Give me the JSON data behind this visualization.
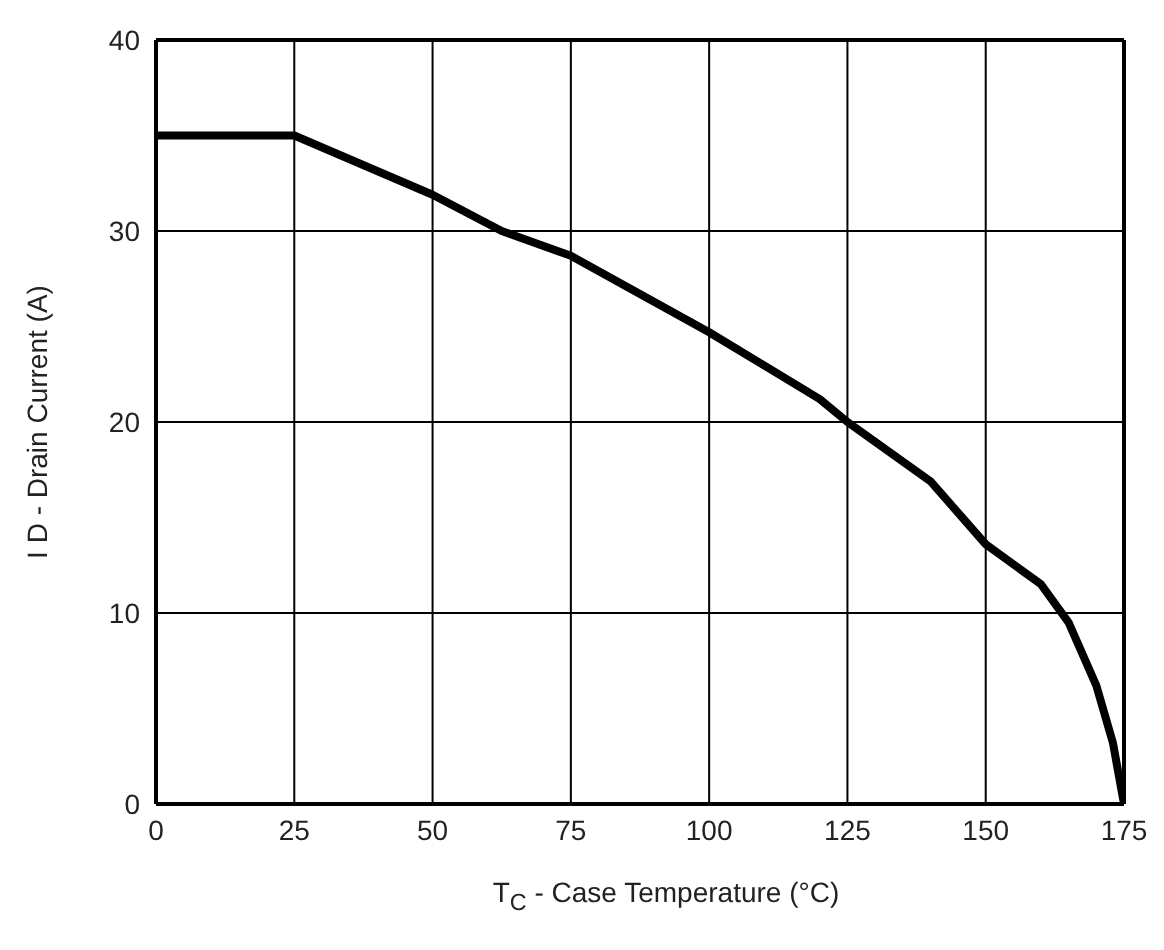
{
  "chart_data": {
    "type": "line",
    "xlabel": "T$_{C}$ -  Case Temperature (°C)",
    "ylabel": "I D -  Drain Current (A)",
    "x": [
      0,
      25,
      50,
      62.5,
      75,
      100,
      120,
      125,
      140,
      150,
      160,
      165,
      170,
      173,
      175
    ],
    "series": [
      {
        "color": "#000000",
        "values": [
          35,
          35,
          31.9,
          30,
          28.7,
          24.7,
          21.2,
          20,
          16.9,
          13.6,
          11.5,
          9.5,
          6.2,
          3.2,
          0
        ]
      }
    ],
    "xlim": [
      0,
      175
    ],
    "xticks": [
      0,
      25,
      50,
      75,
      100,
      125,
      150,
      175
    ],
    "ylim": [
      0,
      40
    ],
    "yticks": [
      0,
      10,
      20,
      30,
      40
    ],
    "grid": true,
    "marker": "none",
    "line_style": "solid"
  }
}
